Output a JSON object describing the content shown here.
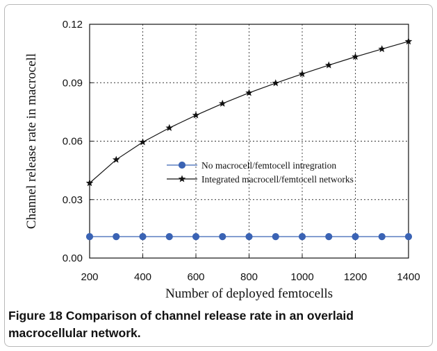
{
  "chart_data": {
    "type": "line",
    "title": "",
    "xlabel": "Number of deployed femtocells",
    "ylabel": "Channel release rate in macrocell",
    "x": [
      200,
      300,
      400,
      500,
      600,
      700,
      800,
      900,
      1000,
      1100,
      1200,
      1300,
      1400
    ],
    "xlim": [
      200,
      1400
    ],
    "ylim": [
      0,
      0.12
    ],
    "xticks": [
      "200",
      "400",
      "600",
      "800",
      "1000",
      "1200",
      "1400"
    ],
    "yticks": [
      "0.00",
      "0.03",
      "0.06",
      "0.09",
      "0.12"
    ],
    "grid": "dotted",
    "legend_position": "center",
    "series": [
      {
        "name": "No macrocell/femtocell intregration",
        "marker": "circle",
        "color": "#3a63b4",
        "values": [
          0.011,
          0.011,
          0.011,
          0.011,
          0.011,
          0.011,
          0.011,
          0.011,
          0.011,
          0.011,
          0.011,
          0.011,
          0.011
        ]
      },
      {
        "name": "Integrated macrocell/femtocell networks",
        "marker": "star",
        "color": "#111111",
        "values": [
          0.0385,
          0.0505,
          0.0595,
          0.0668,
          0.0733,
          0.0793,
          0.0848,
          0.0898,
          0.0945,
          0.099,
          0.1033,
          0.1073,
          0.1112
        ]
      }
    ]
  },
  "caption": {
    "label": "Figure 18",
    "text": "Comparison of channel release rate in an overlaid macrocellular network."
  }
}
